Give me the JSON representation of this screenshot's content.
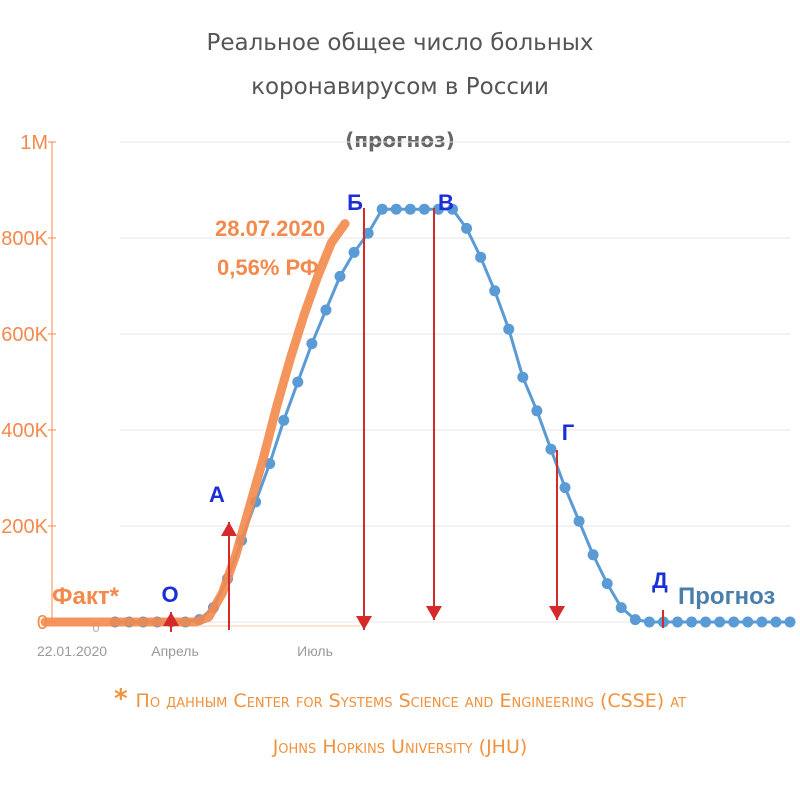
{
  "chart_data": {
    "type": "line",
    "title": "Реальное общее число больных",
    "title_line2": "коронавирусом в России",
    "subtitle": "(прогноз)",
    "y_ticks": [
      "0",
      "200K",
      "400K",
      "600K",
      "800K",
      "1M"
    ],
    "y_tick_values": [
      0,
      200000,
      400000,
      600000,
      800000,
      1000000
    ],
    "ylim": [
      0,
      1000000
    ],
    "x_ticks": [
      "22.01.2020",
      "Апрель",
      "Июль"
    ],
    "x_small_zero": "0",
    "grid": true,
    "series": [
      {
        "name": "Прогноз",
        "color": "#5b9bd5",
        "values": [
          0,
          0,
          0,
          0,
          0,
          0,
          5000,
          30000,
          90000,
          170000,
          250000,
          330000,
          420000,
          500000,
          580000,
          650000,
          720000,
          770000,
          810000,
          860000,
          860000,
          860000,
          860000,
          860000,
          860000,
          820000,
          760000,
          690000,
          610000,
          510000,
          440000,
          360000,
          280000,
          210000,
          140000,
          80000,
          30000,
          5000,
          0,
          0,
          0,
          0,
          0,
          0,
          0,
          0,
          0,
          0,
          0
        ]
      },
      {
        "name": "Факт*",
        "color": "#f4894c",
        "values": [
          0,
          0,
          0,
          0,
          0,
          0,
          0,
          0,
          0,
          0,
          0,
          0,
          10000,
          60000,
          140000,
          240000,
          340000,
          450000,
          550000,
          640000,
          720000,
          790000,
          830000
        ]
      }
    ],
    "annotations": [
      {
        "label": "28.07.2020",
        "color": "#f4894c"
      },
      {
        "label": "0,56% РФ",
        "color": "#f4894c"
      }
    ],
    "points": [
      {
        "label": "О",
        "color": "#1a2fd6"
      },
      {
        "label": "А",
        "color": "#1a2fd6"
      },
      {
        "label": "Б",
        "color": "#1a2fd6"
      },
      {
        "label": "В",
        "color": "#1a2fd6"
      },
      {
        "label": "Г",
        "color": "#1a2fd6"
      },
      {
        "label": "Д",
        "color": "#1a2fd6"
      }
    ],
    "legend_fact": "Факт*",
    "legend_forecast": "Прогноз"
  },
  "footnote": {
    "star": "*",
    "line1": "По данным Center for Systems Science and Engineering (CSSE) at",
    "line2": "Johns Hopkins University (JHU)"
  },
  "colors": {
    "fact": "#f4894c",
    "forecast": "#5b9bd5",
    "arrow": "#d42a2a",
    "point_label": "#1a2fd6",
    "tick": "#f4894c",
    "grid": "#e6e6e6"
  }
}
